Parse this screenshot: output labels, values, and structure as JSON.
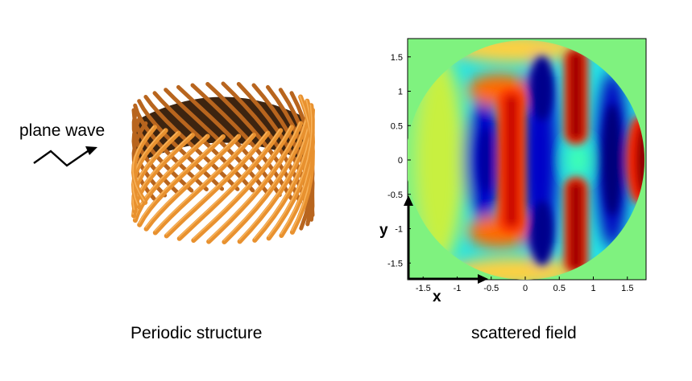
{
  "left_panel": {
    "input_label": "plane wave",
    "caption": "Periodic structure",
    "structure_color": "#e8912f"
  },
  "right_panel": {
    "caption": "scattered field",
    "y_ticks": [
      "1.5",
      "1",
      "0.5",
      "0",
      "-0.5",
      "-1",
      "-1.5"
    ],
    "x_ticks": [
      "-1.5",
      "-1",
      "-0.5",
      "0",
      "0.5",
      "1",
      "1.5"
    ],
    "x_axis_label": "x",
    "y_axis_label": "y",
    "background_color": "#7ff27f",
    "colormap": "jet"
  }
}
